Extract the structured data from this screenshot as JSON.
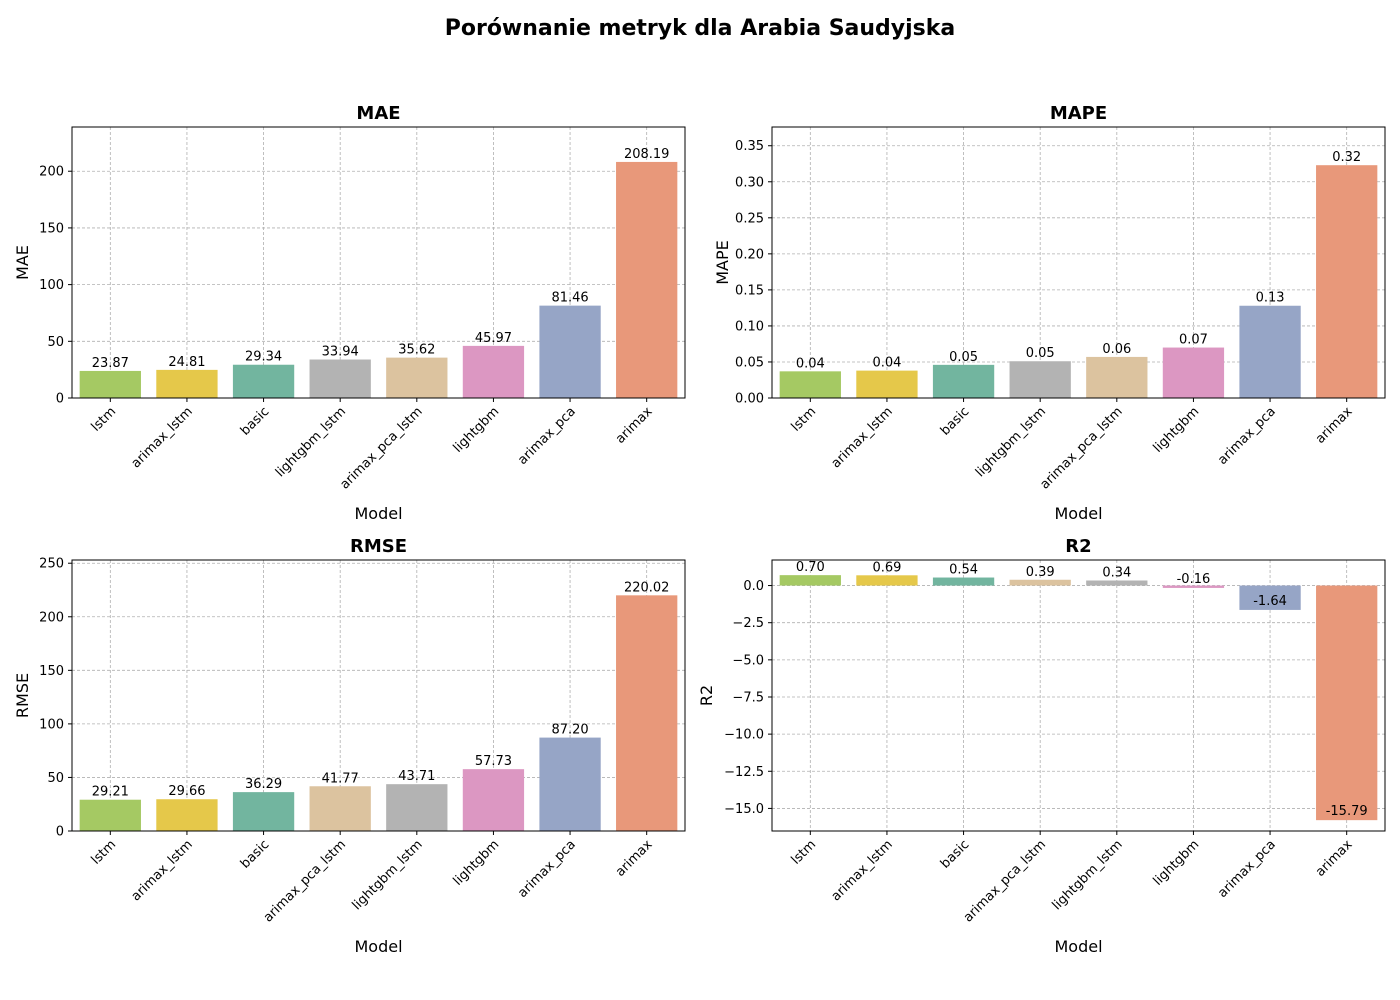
{
  "suptitle": "Porównanie metryk dla Arabia Saudyjska",
  "chart_data": [
    {
      "type": "bar",
      "title": "MAE",
      "xlabel": "Model",
      "ylabel": "MAE",
      "categories": [
        "lstm",
        "arimax_lstm",
        "basic",
        "lightgbm_lstm",
        "arimax_pca_lstm",
        "lightgbm",
        "arimax_pca",
        "arimax"
      ],
      "values": [
        23.87,
        24.81,
        29.34,
        33.94,
        35.62,
        45.97,
        81.46,
        208.19
      ],
      "labels": [
        "23.87",
        "24.81",
        "29.34",
        "33.94",
        "35.62",
        "45.97",
        "81.46",
        "208.19"
      ],
      "colors": [
        "#a5c963",
        "#e5c84a",
        "#72b59f",
        "#b3b3b3",
        "#dcc39f",
        "#dc97c2",
        "#96a5c6",
        "#e8987a"
      ],
      "ylim": [
        0,
        239
      ],
      "yticks": [
        0,
        50,
        100,
        150,
        200
      ],
      "ytick_labels": [
        "0",
        "50",
        "100",
        "150",
        "200"
      ],
      "grid": true
    },
    {
      "type": "bar",
      "title": "MAPE",
      "xlabel": "Model",
      "ylabel": "MAPE",
      "categories": [
        "lstm",
        "arimax_lstm",
        "basic",
        "lightgbm_lstm",
        "arimax_pca_lstm",
        "lightgbm",
        "arimax_pca",
        "arimax"
      ],
      "values": [
        0.037,
        0.038,
        0.046,
        0.051,
        0.057,
        0.07,
        0.128,
        0.323
      ],
      "labels": [
        "0.04",
        "0.04",
        "0.05",
        "0.05",
        "0.06",
        "0.07",
        "0.13",
        "0.32"
      ],
      "colors": [
        "#a5c963",
        "#e5c84a",
        "#72b59f",
        "#b3b3b3",
        "#dcc39f",
        "#dc97c2",
        "#96a5c6",
        "#e8987a"
      ],
      "ylim": [
        0,
        0.376
      ],
      "yticks": [
        0,
        0.05,
        0.1,
        0.15,
        0.2,
        0.25,
        0.3,
        0.35
      ],
      "ytick_labels": [
        "0.00",
        "0.05",
        "0.10",
        "0.15",
        "0.20",
        "0.25",
        "0.30",
        "0.35"
      ],
      "grid": true
    },
    {
      "type": "bar",
      "title": "RMSE",
      "xlabel": "Model",
      "ylabel": "RMSE",
      "categories": [
        "lstm",
        "arimax_lstm",
        "basic",
        "arimax_pca_lstm",
        "lightgbm_lstm",
        "lightgbm",
        "arimax_pca",
        "arimax"
      ],
      "values": [
        29.21,
        29.66,
        36.29,
        41.77,
        43.71,
        57.73,
        87.2,
        220.02
      ],
      "labels": [
        "29.21",
        "29.66",
        "36.29",
        "41.77",
        "43.71",
        "57.73",
        "87.20",
        "220.02"
      ],
      "colors": [
        "#a5c963",
        "#e5c84a",
        "#72b59f",
        "#dcc39f",
        "#b3b3b3",
        "#dc97c2",
        "#96a5c6",
        "#e8987a"
      ],
      "ylim": [
        0,
        253
      ],
      "yticks": [
        0,
        50,
        100,
        150,
        200,
        250
      ],
      "ytick_labels": [
        "0",
        "50",
        "100",
        "150",
        "200",
        "250"
      ],
      "grid": true
    },
    {
      "type": "bar",
      "title": "R2",
      "xlabel": "Model",
      "ylabel": "R2",
      "categories": [
        "lstm",
        "arimax_lstm",
        "basic",
        "arimax_pca_lstm",
        "lightgbm_lstm",
        "lightgbm",
        "arimax_pca",
        "arimax"
      ],
      "values": [
        0.7,
        0.69,
        0.54,
        0.39,
        0.34,
        -0.16,
        -1.64,
        -15.79
      ],
      "labels": [
        "0.70",
        "0.69",
        "0.54",
        "0.39",
        "0.34",
        "-0.16",
        "-1.64",
        "-15.79"
      ],
      "colors": [
        "#a5c963",
        "#e5c84a",
        "#72b59f",
        "#dcc39f",
        "#b3b3b3",
        "#dc97c2",
        "#96a5c6",
        "#e8987a"
      ],
      "ylim": [
        -16.52,
        1.72
      ],
      "yticks": [
        0,
        -2.5,
        -5,
        -7.5,
        -10,
        -12.5,
        -15
      ],
      "ytick_labels": [
        "0.0",
        "−2.5",
        "−5.0",
        "−7.5",
        "−10.0",
        "−12.5",
        "−15.0"
      ],
      "grid": true
    }
  ]
}
